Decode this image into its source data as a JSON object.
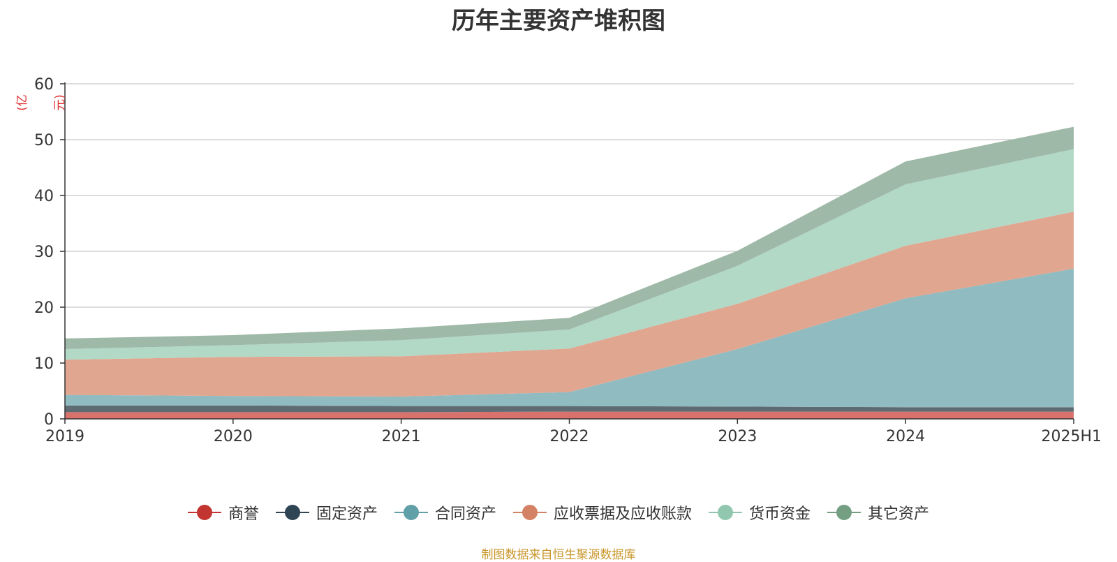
{
  "chart_data": {
    "type": "area",
    "stacked": true,
    "title": "历年主要资产堆积图",
    "unit": "(亿元)",
    "categories": [
      "2019",
      "2020",
      "2021",
      "2022",
      "2023",
      "2024",
      "2025H1"
    ],
    "ylim": [
      0,
      60
    ],
    "yticks": [
      0,
      10,
      20,
      30,
      40,
      50,
      60
    ],
    "grid": true,
    "legend_position": "bottom",
    "series": [
      {
        "name": "商誉",
        "color": "#c23531",
        "fill": "#d9726d",
        "values": [
          1.2,
          1.2,
          1.2,
          1.3,
          1.3,
          1.3,
          1.3
        ]
      },
      {
        "name": "固定资产",
        "color": "#2f4554",
        "fill": "#5f6b73",
        "values": [
          1.2,
          1.2,
          1.1,
          1.0,
          0.9,
          0.8,
          0.8
        ]
      },
      {
        "name": "合同资产",
        "color": "#61a0a8",
        "fill": "#90bbc1",
        "values": [
          1.9,
          1.7,
          1.7,
          2.5,
          10.3,
          19.5,
          24.8
        ]
      },
      {
        "name": "应收票据及应收账款",
        "color": "#d48265",
        "fill": "#e0a690",
        "values": [
          6.3,
          7.0,
          7.2,
          7.8,
          8.1,
          9.4,
          10.2
        ]
      },
      {
        "name": "货币资金",
        "color": "#91c7ae",
        "fill": "#b2d8c6",
        "values": [
          1.9,
          2.1,
          2.9,
          3.4,
          6.8,
          11.0,
          11.2
        ]
      },
      {
        "name": "其它资产",
        "color": "#749f83",
        "fill": "#9fb9a8",
        "values": [
          1.9,
          1.8,
          2.1,
          2.1,
          2.7,
          4.1,
          4.0
        ]
      }
    ]
  },
  "footer": {
    "source_note": "制图数据来自恒生聚源数据库"
  }
}
